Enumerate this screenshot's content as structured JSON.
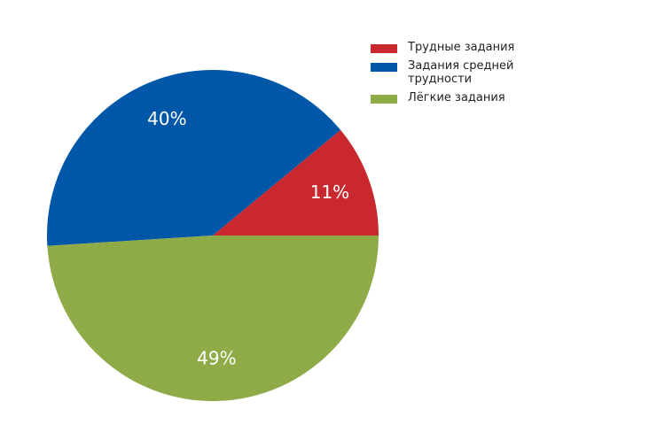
{
  "chart_data": {
    "type": "pie",
    "categories": [
      "Трудные задания",
      "Задания средней трудности",
      "Лёгкие задания"
    ],
    "values": [
      11,
      40,
      49
    ],
    "value_labels": [
      "11%",
      "40%",
      "49%"
    ],
    "colors": [
      "#c9292e",
      "#0057a8",
      "#8eab48"
    ]
  }
}
